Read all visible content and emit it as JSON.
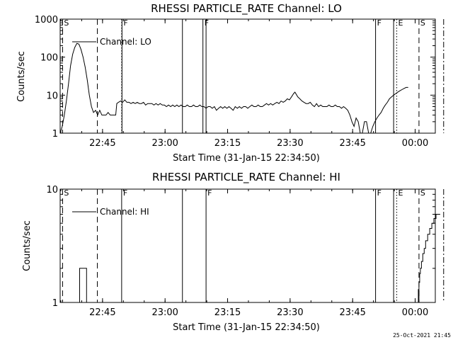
{
  "footer_timestamp": "25-Oct-2021 21:45",
  "chart_data": [
    {
      "type": "line",
      "title": "RHESSI PARTICLE_RATE Channel: LO",
      "xlabel": "Start Time (31-Jan-15 22:34:50)",
      "ylabel": "Counts/sec",
      "yscale": "log",
      "ylim": [
        1,
        1000
      ],
      "y_ticks": [
        "1",
        "10",
        "100",
        "1000"
      ],
      "xlim_seconds": [
        0,
        5400
      ],
      "x_ticks": [
        {
          "label": "22:45",
          "t": 610
        },
        {
          "label": "23:00",
          "t": 1510
        },
        {
          "label": "23:15",
          "t": 2410
        },
        {
          "label": "23:30",
          "t": 3310
        },
        {
          "label": "23:45",
          "t": 4210
        },
        {
          "label": "00:00",
          "t": 5110
        }
      ],
      "grid": false,
      "legend": {
        "position": "top-left",
        "entries": [
          "Channel: LO"
        ]
      },
      "series": [
        {
          "name": "Channel: LO",
          "points": [
            [
              0,
              1
            ],
            [
              30,
              1.5
            ],
            [
              60,
              3
            ],
            [
              90,
              7
            ],
            [
              120,
              20
            ],
            [
              150,
              60
            ],
            [
              180,
              120
            ],
            [
              210,
              180
            ],
            [
              240,
              230
            ],
            [
              270,
              220
            ],
            [
              300,
              160
            ],
            [
              330,
              100
            ],
            [
              360,
              55
            ],
            [
              390,
              25
            ],
            [
              420,
              10
            ],
            [
              450,
              5
            ],
            [
              480,
              3.5
            ],
            [
              510,
              4
            ],
            [
              540,
              3
            ],
            [
              570,
              4
            ],
            [
              600,
              3
            ],
            [
              630,
              3
            ],
            [
              660,
              3
            ],
            [
              690,
              3.5
            ],
            [
              720,
              3
            ],
            [
              750,
              3
            ],
            [
              780,
              3
            ],
            [
              800,
              3
            ],
            [
              815,
              6
            ],
            [
              840,
              6.5
            ],
            [
              870,
              7
            ],
            [
              900,
              6.5
            ],
            [
              930,
              7.5
            ],
            [
              960,
              6.5
            ],
            [
              990,
              6.5
            ],
            [
              1020,
              6
            ],
            [
              1050,
              6.5
            ],
            [
              1080,
              6
            ],
            [
              1110,
              6.5
            ],
            [
              1140,
              6
            ],
            [
              1170,
              6
            ],
            [
              1200,
              6.5
            ],
            [
              1230,
              5.5
            ],
            [
              1260,
              6
            ],
            [
              1290,
              6
            ],
            [
              1320,
              6
            ],
            [
              1350,
              5.5
            ],
            [
              1380,
              6
            ],
            [
              1410,
              5.5
            ],
            [
              1440,
              6
            ],
            [
              1470,
              5.5
            ],
            [
              1500,
              5.5
            ],
            [
              1530,
              5
            ],
            [
              1560,
              5.5
            ],
            [
              1590,
              5
            ],
            [
              1620,
              5.5
            ],
            [
              1650,
              5
            ],
            [
              1680,
              5.5
            ],
            [
              1710,
              5
            ],
            [
              1740,
              5.5
            ],
            [
              1770,
              5
            ],
            [
              1800,
              5
            ],
            [
              1830,
              5.5
            ],
            [
              1860,
              5
            ],
            [
              1890,
              5
            ],
            [
              1920,
              5.5
            ],
            [
              1950,
              5
            ],
            [
              1980,
              5
            ],
            [
              2010,
              5.5
            ],
            [
              2040,
              5
            ],
            [
              2070,
              5
            ],
            [
              2100,
              4.5
            ],
            [
              2130,
              5
            ],
            [
              2160,
              5
            ],
            [
              2190,
              4.5
            ],
            [
              2220,
              5
            ],
            [
              2250,
              4
            ],
            [
              2280,
              4.5
            ],
            [
              2310,
              5
            ],
            [
              2340,
              4.5
            ],
            [
              2370,
              5
            ],
            [
              2400,
              4.5
            ],
            [
              2430,
              5
            ],
            [
              2460,
              4.5
            ],
            [
              2490,
              4
            ],
            [
              2520,
              5
            ],
            [
              2550,
              4.5
            ],
            [
              2580,
              5
            ],
            [
              2610,
              4.5
            ],
            [
              2640,
              5
            ],
            [
              2670,
              5
            ],
            [
              2700,
              4.5
            ],
            [
              2730,
              5
            ],
            [
              2760,
              5.5
            ],
            [
              2790,
              5
            ],
            [
              2820,
              5
            ],
            [
              2850,
              5.5
            ],
            [
              2880,
              5
            ],
            [
              2910,
              5
            ],
            [
              2940,
              5.5
            ],
            [
              2970,
              6
            ],
            [
              3000,
              5.5
            ],
            [
              3030,
              6
            ],
            [
              3060,
              5.5
            ],
            [
              3090,
              6
            ],
            [
              3120,
              6.5
            ],
            [
              3150,
              6
            ],
            [
              3180,
              7
            ],
            [
              3210,
              6.5
            ],
            [
              3240,
              7
            ],
            [
              3270,
              8
            ],
            [
              3300,
              7.5
            ],
            [
              3330,
              9
            ],
            [
              3360,
              11
            ],
            [
              3380,
              12
            ],
            [
              3420,
              9
            ],
            [
              3450,
              8
            ],
            [
              3480,
              7
            ],
            [
              3510,
              6.5
            ],
            [
              3540,
              6
            ],
            [
              3570,
              6
            ],
            [
              3600,
              6.5
            ],
            [
              3630,
              5.5
            ],
            [
              3660,
              5
            ],
            [
              3690,
              6
            ],
            [
              3720,
              5
            ],
            [
              3750,
              5.5
            ],
            [
              3780,
              5
            ],
            [
              3810,
              5
            ],
            [
              3840,
              5
            ],
            [
              3870,
              5.5
            ],
            [
              3900,
              5
            ],
            [
              3930,
              5
            ],
            [
              3960,
              5.5
            ],
            [
              3990,
              5
            ],
            [
              4020,
              5
            ],
            [
              4050,
              4.5
            ],
            [
              4080,
              5
            ],
            [
              4110,
              4.5
            ],
            [
              4140,
              4
            ],
            [
              4170,
              3
            ],
            [
              4200,
              2
            ],
            [
              4230,
              1.5
            ],
            [
              4260,
              2.5
            ],
            [
              4290,
              2
            ],
            [
              4320,
              1
            ],
            [
              4350,
              1
            ],
            [
              4380,
              2
            ],
            [
              4410,
              2
            ],
            [
              4440,
              1
            ],
            [
              4470,
              1
            ],
            [
              4500,
              1.5
            ],
            [
              4530,
              2
            ],
            [
              4560,
              2.5
            ],
            [
              4590,
              3
            ],
            [
              4620,
              3.5
            ],
            [
              4650,
              4.5
            ],
            [
              4680,
              5.5
            ],
            [
              4710,
              6.5
            ],
            [
              4740,
              8
            ],
            [
              4770,
              9
            ],
            [
              4800,
              10
            ],
            [
              4830,
              11
            ],
            [
              4860,
              12
            ],
            [
              4890,
              13
            ],
            [
              4920,
              14
            ],
            [
              4950,
              15
            ],
            [
              4980,
              16
            ],
            [
              5010,
              16
            ]
          ]
        }
      ],
      "event_markers": [
        {
          "label": "S",
          "t": 35,
          "style": "dashed"
        },
        {
          "label": "",
          "t": 535,
          "style": "dashed"
        },
        {
          "label": "F",
          "t": 890,
          "style": "solid"
        },
        {
          "label": "",
          "t": 885,
          "style": "dotted"
        },
        {
          "label": "",
          "t": 1760,
          "style": "solid"
        },
        {
          "label": "F",
          "t": 2055,
          "style": "solid"
        },
        {
          "label": "",
          "t": 2100,
          "style": "solid"
        },
        {
          "label": "F",
          "t": 4540,
          "style": "solid"
        },
        {
          "label": "",
          "t": 4800,
          "style": "solid"
        },
        {
          "label": "E",
          "t": 4845,
          "style": "dotted"
        },
        {
          "label": "S",
          "t": 5165,
          "style": "dashed"
        },
        {
          "label": "",
          "t": 5520,
          "style": "dashdot"
        }
      ]
    },
    {
      "type": "line",
      "title": "RHESSI PARTICLE_RATE Channel: HI",
      "xlabel": "Start Time (31-Jan-15 22:34:50)",
      "ylabel": "Counts/sec",
      "yscale": "log",
      "ylim": [
        1,
        10
      ],
      "y_ticks": [
        "1",
        "10"
      ],
      "xlim_seconds": [
        0,
        5400
      ],
      "x_ticks": [
        {
          "label": "22:45",
          "t": 610
        },
        {
          "label": "23:00",
          "t": 1510
        },
        {
          "label": "23:15",
          "t": 2410
        },
        {
          "label": "23:30",
          "t": 3310
        },
        {
          "label": "23:45",
          "t": 4210
        },
        {
          "label": "00:00",
          "t": 5110
        }
      ],
      "grid": false,
      "legend": {
        "position": "top-left",
        "entries": [
          "Channel: HI"
        ]
      },
      "series": [
        {
          "name": "Channel: HI",
          "points": [
            [
              270,
              1
            ],
            [
              280,
              2
            ],
            [
              370,
              2
            ],
            [
              380,
              1
            ],
            [
              5145,
              1
            ],
            [
              5155,
              1.3
            ],
            [
              5160,
              1
            ],
            [
              5165,
              1.5
            ],
            [
              5175,
              1.8
            ],
            [
              5185,
              2
            ],
            [
              5200,
              2.3
            ],
            [
              5220,
              2.7
            ],
            [
              5240,
              3
            ],
            [
              5260,
              3.5
            ],
            [
              5290,
              4
            ],
            [
              5320,
              4.5
            ],
            [
              5350,
              5
            ],
            [
              5380,
              5.5
            ],
            [
              5410,
              6
            ],
            [
              5470,
              6
            ]
          ]
        }
      ],
      "event_markers": [
        {
          "label": "S",
          "t": 35,
          "style": "dashed"
        },
        {
          "label": "",
          "t": 535,
          "style": "dashed"
        },
        {
          "label": "F",
          "t": 885,
          "style": "solid"
        },
        {
          "label": "",
          "t": 1760,
          "style": "solid"
        },
        {
          "label": "F",
          "t": 2100,
          "style": "solid"
        },
        {
          "label": "F",
          "t": 4540,
          "style": "solid"
        },
        {
          "label": "",
          "t": 4800,
          "style": "solid"
        },
        {
          "label": "E",
          "t": 4845,
          "style": "dotted"
        },
        {
          "label": "S",
          "t": 5165,
          "style": "dashed"
        },
        {
          "label": "",
          "t": 5520,
          "style": "dashdot"
        }
      ]
    }
  ]
}
